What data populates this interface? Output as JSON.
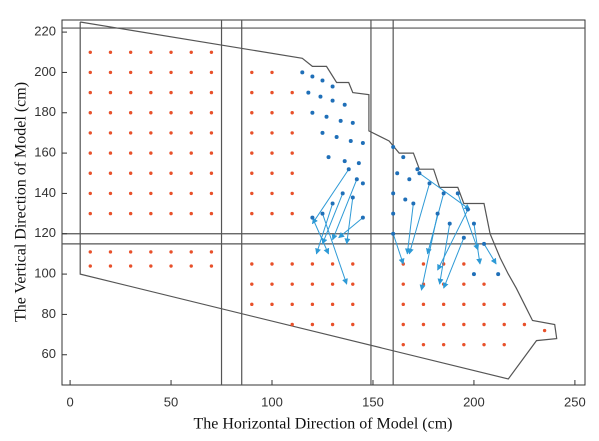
{
  "chart_data": {
    "type": "vector-field",
    "x_label": "The Horizontal Direction of Model (cm)",
    "y_label": "The Vertical Direction of Model (cm)",
    "xlim": [
      -4,
      255
    ],
    "ylim": [
      45,
      226
    ],
    "xticks": [
      0,
      50,
      100,
      150,
      200,
      250
    ],
    "yticks": [
      60,
      80,
      100,
      120,
      140,
      160,
      180,
      200,
      220
    ],
    "frame_x": [
      75,
      85,
      149,
      160
    ],
    "frame_y": [
      115,
      120,
      222
    ],
    "boundary": {
      "color": "#555555",
      "x": [
        5,
        115,
        120,
        127,
        132,
        138,
        140,
        148,
        148,
        158,
        163,
        170,
        173,
        180,
        183,
        192,
        195,
        205,
        208,
        213,
        217,
        221,
        225,
        229,
        240,
        241,
        231,
        217,
        5,
        5
      ],
      "y": [
        225,
        207,
        203,
        203,
        195,
        195,
        190,
        189,
        171,
        166,
        160,
        160,
        152,
        152,
        143,
        143,
        135,
        135,
        120,
        108,
        100,
        93,
        85,
        77,
        75,
        68,
        67,
        48,
        100,
        225
      ]
    },
    "points": {
      "color": "#e8502a",
      "columns": [
        {
          "x": 10,
          "y": [
            104,
            111,
            130,
            140,
            150,
            160,
            170,
            180,
            190,
            200,
            210
          ]
        },
        {
          "x": 20,
          "y": [
            104,
            111,
            130,
            140,
            150,
            160,
            170,
            180,
            190,
            200,
            210
          ]
        },
        {
          "x": 30,
          "y": [
            104,
            111,
            130,
            140,
            150,
            160,
            170,
            180,
            190,
            200,
            210
          ]
        },
        {
          "x": 40,
          "y": [
            104,
            111,
            130,
            140,
            150,
            160,
            170,
            180,
            190,
            200,
            210
          ]
        },
        {
          "x": 50,
          "y": [
            104,
            111,
            130,
            140,
            150,
            160,
            170,
            180,
            190,
            200,
            210
          ]
        },
        {
          "x": 60,
          "y": [
            104,
            111,
            130,
            140,
            150,
            160,
            170,
            180,
            190,
            200,
            210
          ]
        },
        {
          "x": 70,
          "y": [
            104,
            111,
            130,
            140,
            150,
            160,
            170,
            180,
            190,
            200,
            210
          ]
        },
        {
          "x": 90,
          "y": [
            85,
            95,
            105,
            130,
            140,
            150,
            160,
            170,
            180,
            190,
            200
          ]
        },
        {
          "x": 100,
          "y": [
            85,
            95,
            105,
            130,
            140,
            150,
            160,
            170,
            180,
            190,
            200
          ]
        },
        {
          "x": 110,
          "y": [
            75,
            85,
            95,
            105,
            130,
            140,
            150,
            160,
            170,
            180,
            190
          ]
        },
        {
          "x": 120,
          "y": [
            75,
            85,
            95,
            105
          ]
        },
        {
          "x": 130,
          "y": [
            75,
            85,
            95,
            105
          ]
        },
        {
          "x": 140,
          "y": [
            75,
            85,
            95,
            105
          ]
        },
        {
          "x": 165,
          "y": [
            65,
            75,
            85,
            95,
            105
          ]
        },
        {
          "x": 175,
          "y": [
            65,
            75,
            85,
            95,
            105
          ]
        },
        {
          "x": 185,
          "y": [
            65,
            75,
            85,
            95,
            105
          ]
        },
        {
          "x": 195,
          "y": [
            65,
            75,
            85,
            95,
            105
          ]
        },
        {
          "x": 205,
          "y": [
            65,
            75,
            85,
            95
          ]
        },
        {
          "x": 215,
          "y": [
            65,
            75,
            85
          ]
        },
        {
          "x": 225,
          "y": [
            75
          ]
        },
        {
          "x": 235,
          "y": [
            72
          ]
        }
      ]
    },
    "moving_points": {
      "color": "#1f6fb8",
      "x": [
        115,
        120,
        125,
        130,
        118,
        124,
        130,
        136,
        120,
        127,
        134,
        140,
        125,
        132,
        139,
        145,
        128,
        136,
        143,
        145,
        160,
        165,
        162,
        168,
        172,
        160,
        166,
        160,
        200,
        212
      ],
      "y": [
        200,
        198,
        196,
        193,
        190,
        188,
        186,
        184,
        180,
        178,
        176,
        175,
        170,
        168,
        166,
        165,
        158,
        156,
        155,
        145,
        163,
        158,
        150,
        147,
        152,
        140,
        137,
        130,
        100,
        100
      ]
    },
    "vectors": {
      "color": "#2e9ad6",
      "x": [
        138,
        142,
        135,
        130,
        125,
        140,
        145,
        120,
        173,
        178,
        185,
        192,
        197,
        170,
        182,
        188,
        200,
        160,
        195,
        205
      ],
      "y": [
        152,
        147,
        140,
        135,
        130,
        138,
        128,
        128,
        150,
        145,
        140,
        140,
        132,
        135,
        130,
        125,
        125,
        120,
        118,
        115
      ],
      "u": [
        -18,
        -12,
        -10,
        -8,
        12,
        -3,
        -12,
        8,
        25,
        -10,
        -8,
        10,
        -15,
        -3,
        -8,
        -5,
        3,
        5,
        -10,
        6
      ],
      "v": [
        -27,
        -30,
        -25,
        -25,
        -35,
        -23,
        -10,
        -18,
        -18,
        -35,
        -30,
        -28,
        -30,
        -25,
        -38,
        -30,
        -20,
        -15,
        -25,
        -10
      ]
    }
  }
}
